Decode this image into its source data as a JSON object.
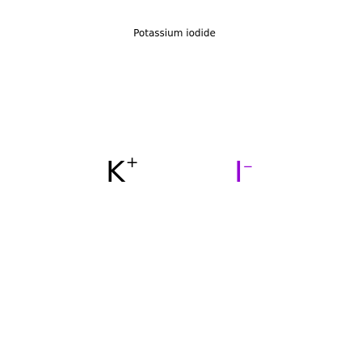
{
  "title": "Potassium iodide",
  "ions": {
    "cation": {
      "symbol": "K",
      "charge": "+",
      "color": "#000000"
    },
    "anion": {
      "symbol": "I",
      "charge": "−",
      "color": "#9400d3"
    }
  }
}
